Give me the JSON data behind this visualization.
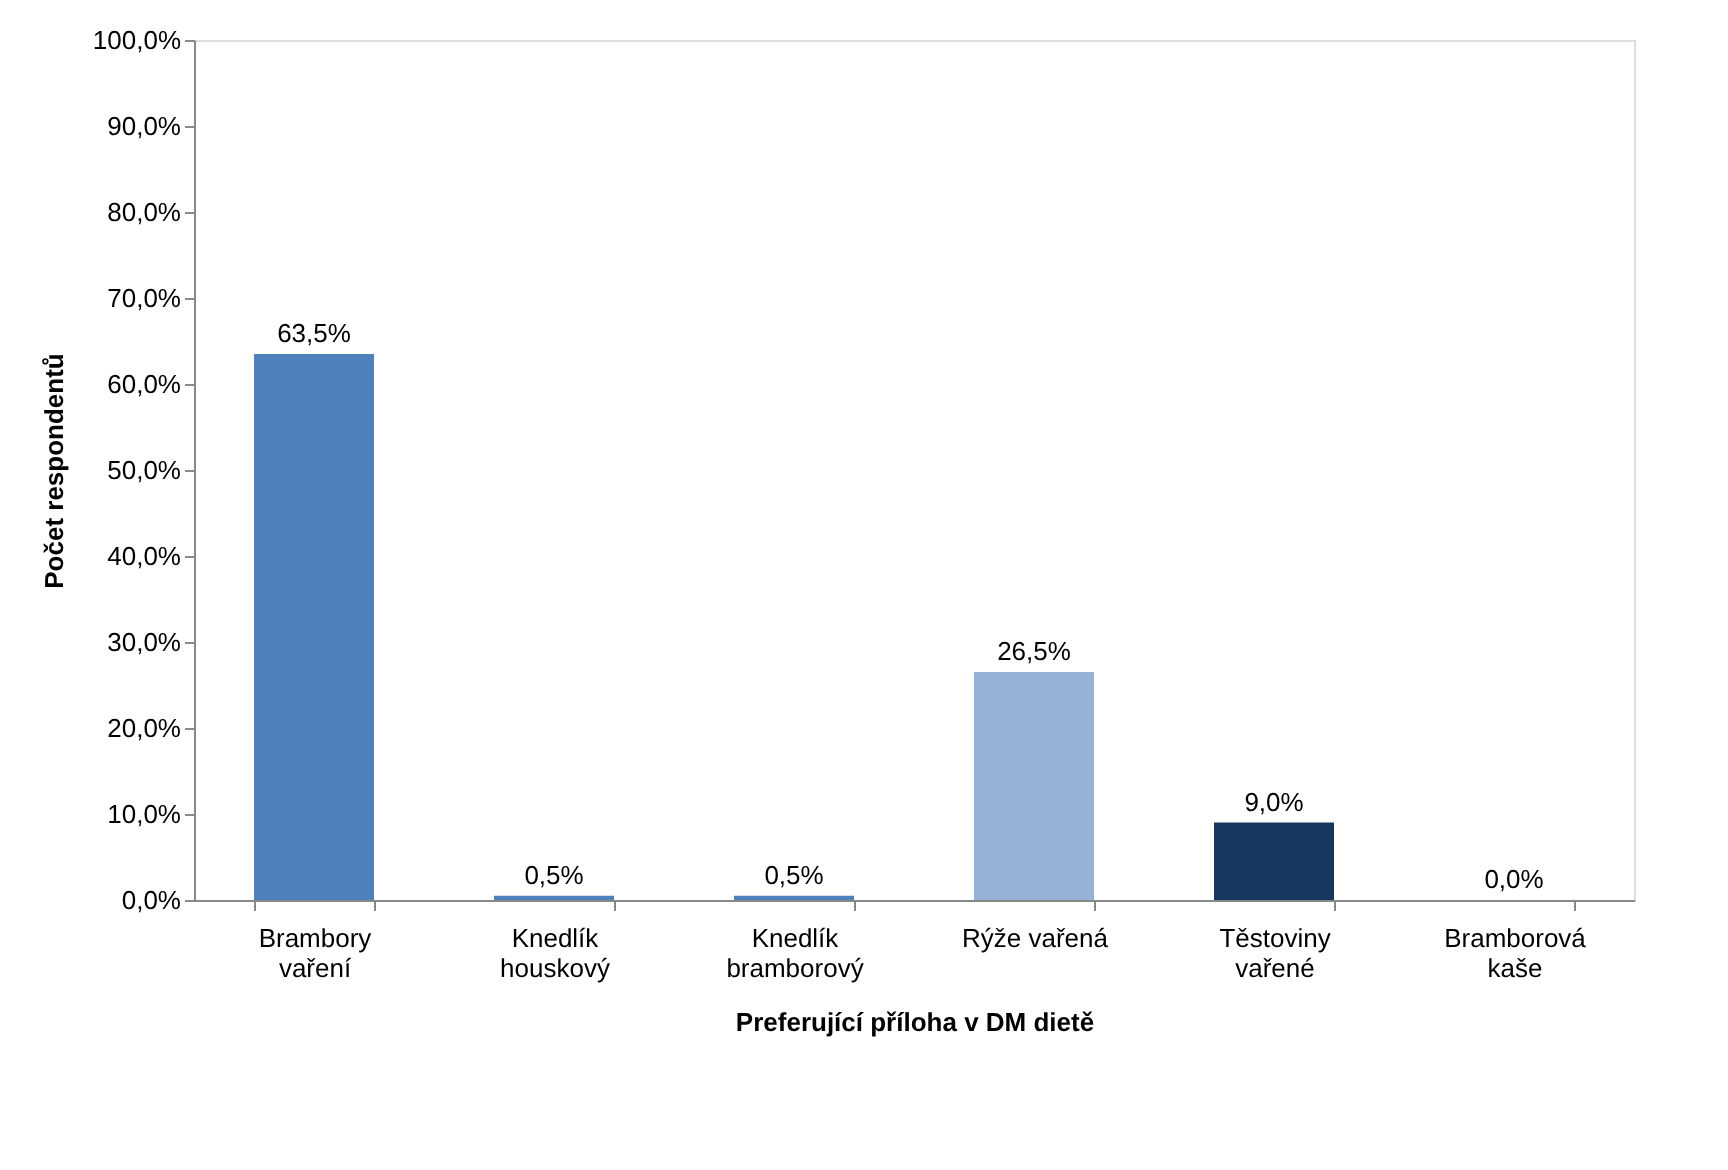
{
  "chart_data": {
    "type": "bar",
    "xlabel": "Preferující příloha v DM dietě",
    "ylabel": "Počet respondentů",
    "categories": [
      "Brambory vaření",
      "Knedlík houskový",
      "Knedlík bramborový",
      "Rýže vařená",
      "Těstoviny vařené",
      "Bramborová kaše"
    ],
    "values": [
      63.5,
      0.5,
      0.5,
      26.5,
      9.0,
      0.0
    ],
    "colors": [
      "#4f81bd",
      "#4f81bd",
      "#4f81bd",
      "#95b3d7",
      "#17375e",
      "#4f81bd"
    ],
    "value_labels": [
      "63,5%",
      "0,5%",
      "0,5%",
      "26,5%",
      "9,0%",
      "0,0%"
    ],
    "ylim": [
      0,
      100
    ],
    "yticks": [
      {
        "value": 0,
        "label": "0,0%"
      },
      {
        "value": 10,
        "label": "10,0%"
      },
      {
        "value": 20,
        "label": "20,0%"
      },
      {
        "value": 30,
        "label": "30,0%"
      },
      {
        "value": 40,
        "label": "40,0%"
      },
      {
        "value": 50,
        "label": "50,0%"
      },
      {
        "value": 60,
        "label": "60,0%"
      },
      {
        "value": 70,
        "label": "70,0%"
      },
      {
        "value": 80,
        "label": "80,0%"
      },
      {
        "value": 90,
        "label": "90,0%"
      },
      {
        "value": 100,
        "label": "100,0%"
      }
    ],
    "grid": false
  }
}
